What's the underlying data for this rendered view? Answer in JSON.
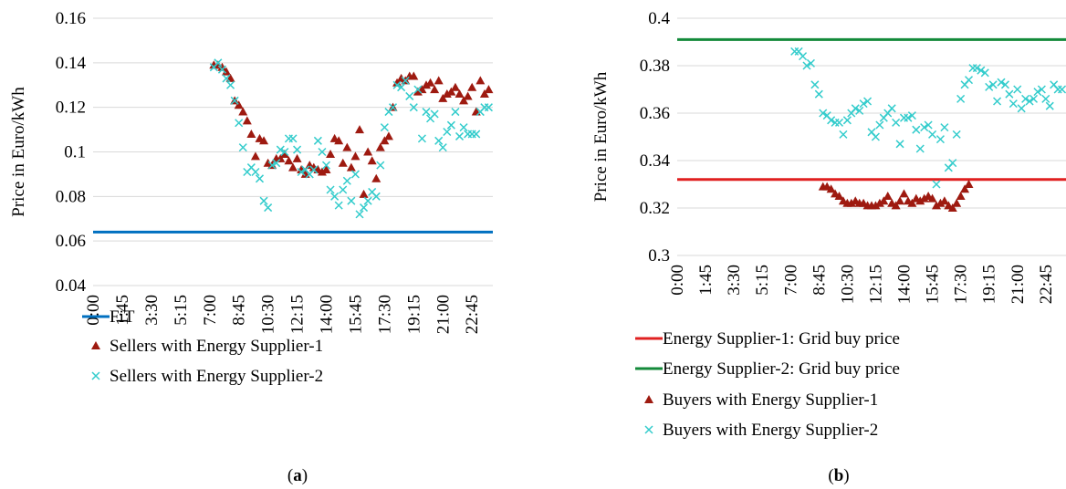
{
  "chart_data": [
    {
      "id": "a",
      "type": "scatter",
      "caption_letter": "a",
      "ylabel": "Price in Euro/kWh",
      "ylim": [
        0.04,
        0.16
      ],
      "yticks": [
        0.04,
        0.06,
        0.08,
        0.1,
        0.12,
        0.14,
        0.16
      ],
      "ytick_labels": [
        "0.04",
        "0.06",
        "0.08",
        "0.1",
        "0.12",
        "0.14",
        "0.16"
      ],
      "xlim": [
        0,
        24
      ],
      "xticks": [
        0,
        1.75,
        3.5,
        5.25,
        7,
        8.75,
        10.5,
        12.25,
        14,
        15.75,
        17.5,
        19.25,
        21,
        22.75
      ],
      "xtick_labels": [
        "0:00",
        "1:45",
        "3:30",
        "5:15",
        "7:00",
        "8:45",
        "10:30",
        "12:15",
        "14:00",
        "15:45",
        "17:30",
        "19:15",
        "21:00",
        "22:45"
      ],
      "grid": "horizontal",
      "legend_position": "bottom",
      "series": [
        {
          "name": "FiT",
          "kind": "line",
          "color": "#0070c0",
          "x": [
            0,
            24
          ],
          "y": [
            0.064,
            0.064
          ]
        },
        {
          "name": "Sellers with Energy Supplier-1",
          "kind": "triangle",
          "color": "#9e1a10",
          "x": [
            7.25,
            7.5,
            7.75,
            8.0,
            8.25,
            8.5,
            8.75,
            9.0,
            9.25,
            9.5,
            9.75,
            10.0,
            10.25,
            10.5,
            10.75,
            11.0,
            11.25,
            11.5,
            11.75,
            12.0,
            12.25,
            12.5,
            12.75,
            13.0,
            13.25,
            13.5,
            13.75,
            14.0,
            14.25,
            14.5,
            14.75,
            15.0,
            15.25,
            15.5,
            15.75,
            16.0,
            16.25,
            16.5,
            16.75,
            17.0,
            17.25,
            17.5,
            17.75,
            18.0,
            18.25,
            18.5,
            18.75,
            19.0,
            19.25,
            19.5,
            19.75,
            20.0,
            20.25,
            20.5,
            20.75,
            21.0,
            21.25,
            21.5,
            21.75,
            22.0,
            22.25,
            22.5,
            22.75,
            23.0,
            23.25,
            23.5,
            23.75
          ],
          "y": [
            0.139,
            0.139,
            0.138,
            0.136,
            0.133,
            0.123,
            0.121,
            0.118,
            0.114,
            0.108,
            0.098,
            0.106,
            0.105,
            0.095,
            0.094,
            0.097,
            0.097,
            0.099,
            0.096,
            0.093,
            0.097,
            0.092,
            0.09,
            0.094,
            0.093,
            0.092,
            0.091,
            0.092,
            0.099,
            0.106,
            0.105,
            0.095,
            0.102,
            0.093,
            0.098,
            0.11,
            0.081,
            0.1,
            0.096,
            0.088,
            0.102,
            0.105,
            0.107,
            0.12,
            0.131,
            0.133,
            0.132,
            0.134,
            0.134,
            0.127,
            0.128,
            0.13,
            0.131,
            0.128,
            0.132,
            0.124,
            0.126,
            0.127,
            0.129,
            0.126,
            0.123,
            0.125,
            0.129,
            0.118,
            0.132,
            0.126,
            0.128
          ]
        },
        {
          "name": "Sellers with Energy Supplier-2",
          "kind": "x",
          "color": "#33cccc",
          "x": [
            7.25,
            7.5,
            7.75,
            8.0,
            8.25,
            8.5,
            8.75,
            9.0,
            9.25,
            9.5,
            9.75,
            10.0,
            10.25,
            10.5,
            10.75,
            11.0,
            11.25,
            11.5,
            11.75,
            12.0,
            12.25,
            12.5,
            12.75,
            13.0,
            13.25,
            13.5,
            13.75,
            14.0,
            14.25,
            14.5,
            14.75,
            15.0,
            15.25,
            15.5,
            15.75,
            16.0,
            16.25,
            16.5,
            16.75,
            17.0,
            17.25,
            17.5,
            17.75,
            18.0,
            18.25,
            18.5,
            18.75,
            19.0,
            19.25,
            19.5,
            19.75,
            20.0,
            20.25,
            20.5,
            20.75,
            21.0,
            21.25,
            21.5,
            21.75,
            22.0,
            22.25,
            22.5,
            22.75,
            23.0,
            23.25,
            23.5,
            23.75
          ],
          "y": [
            0.138,
            0.14,
            0.137,
            0.133,
            0.13,
            0.123,
            0.113,
            0.102,
            0.091,
            0.093,
            0.091,
            0.088,
            0.078,
            0.075,
            0.094,
            0.095,
            0.101,
            0.1,
            0.106,
            0.106,
            0.101,
            0.091,
            0.092,
            0.09,
            0.092,
            0.105,
            0.1,
            0.094,
            0.083,
            0.08,
            0.076,
            0.083,
            0.087,
            0.078,
            0.09,
            0.072,
            0.075,
            0.078,
            0.082,
            0.08,
            0.094,
            0.111,
            0.118,
            0.12,
            0.13,
            0.129,
            0.132,
            0.125,
            0.12,
            0.128,
            0.106,
            0.118,
            0.115,
            0.117,
            0.105,
            0.102,
            0.109,
            0.112,
            0.118,
            0.107,
            0.111,
            0.108,
            0.108,
            0.108,
            0.118,
            0.12,
            0.12
          ]
        }
      ]
    },
    {
      "id": "b",
      "type": "scatter",
      "caption_letter": "b",
      "ylabel": "Price in Euro/kWh",
      "ylim": [
        0.3,
        0.4
      ],
      "yticks": [
        0.3,
        0.32,
        0.34,
        0.36,
        0.38,
        0.4
      ],
      "ytick_labels": [
        "0.3",
        "0.32",
        "0.34",
        "0.36",
        "0.38",
        "0.4"
      ],
      "xlim": [
        0,
        24
      ],
      "xticks": [
        0,
        1.75,
        3.5,
        5.25,
        7,
        8.75,
        10.5,
        12.25,
        14,
        15.75,
        17.5,
        19.25,
        21,
        22.75
      ],
      "xtick_labels": [
        "0:00",
        "1:45",
        "3:30",
        "5:15",
        "7:00",
        "8:45",
        "10:30",
        "12:15",
        "14:00",
        "15:45",
        "17:30",
        "19:15",
        "21:00",
        "22:45"
      ],
      "grid": "horizontal",
      "legend_position": "bottom",
      "series": [
        {
          "name": "Energy Supplier-1: Grid buy price",
          "kind": "line",
          "color": "#e02020",
          "x": [
            0,
            24
          ],
          "y": [
            0.332,
            0.332
          ]
        },
        {
          "name": "Energy Supplier-2: Grid buy price",
          "kind": "line",
          "color": "#138a3a",
          "x": [
            0,
            24
          ],
          "y": [
            0.391,
            0.391
          ]
        },
        {
          "name": "Buyers with Energy Supplier-1",
          "kind": "triangle",
          "color": "#9e1a10",
          "x": [
            9.0,
            9.25,
            9.5,
            9.75,
            10.0,
            10.25,
            10.5,
            10.75,
            11.0,
            11.25,
            11.5,
            11.75,
            12.0,
            12.25,
            12.5,
            12.75,
            13.0,
            13.25,
            13.5,
            13.75,
            14.0,
            14.25,
            14.5,
            14.75,
            15.0,
            15.25,
            15.5,
            15.75,
            16.0,
            16.25,
            16.5,
            16.75,
            17.0,
            17.25,
            17.5,
            17.75,
            18.0
          ],
          "y": [
            0.329,
            0.329,
            0.328,
            0.326,
            0.325,
            0.323,
            0.322,
            0.322,
            0.323,
            0.322,
            0.322,
            0.321,
            0.321,
            0.321,
            0.322,
            0.323,
            0.325,
            0.322,
            0.321,
            0.323,
            0.326,
            0.323,
            0.322,
            0.324,
            0.323,
            0.324,
            0.325,
            0.324,
            0.321,
            0.322,
            0.323,
            0.321,
            0.32,
            0.322,
            0.325,
            0.328,
            0.33
          ]
        },
        {
          "name": "Buyers with Energy Supplier-2",
          "kind": "x",
          "color": "#33cccc",
          "x": [
            7.25,
            7.5,
            7.75,
            8.0,
            8.25,
            8.5,
            8.75,
            9.0,
            9.25,
            9.5,
            9.75,
            10.0,
            10.25,
            10.5,
            10.75,
            11.0,
            11.25,
            11.5,
            11.75,
            12.0,
            12.25,
            12.5,
            12.75,
            13.0,
            13.25,
            13.5,
            13.75,
            14.0,
            14.25,
            14.5,
            14.75,
            15.0,
            15.25,
            15.5,
            15.75,
            16.0,
            16.25,
            16.5,
            16.75,
            17.0,
            17.25,
            17.5,
            17.75,
            18.0,
            18.25,
            18.5,
            18.75,
            19.0,
            19.25,
            19.5,
            19.75,
            20.0,
            20.25,
            20.5,
            20.75,
            21.0,
            21.25,
            21.5,
            21.75,
            22.0,
            22.25,
            22.5,
            22.75,
            23.0,
            23.25,
            23.5,
            23.75
          ],
          "y": [
            0.386,
            0.386,
            0.384,
            0.38,
            0.381,
            0.372,
            0.368,
            0.36,
            0.359,
            0.357,
            0.356,
            0.356,
            0.351,
            0.357,
            0.36,
            0.362,
            0.361,
            0.364,
            0.365,
            0.352,
            0.35,
            0.355,
            0.358,
            0.36,
            0.362,
            0.356,
            0.347,
            0.358,
            0.358,
            0.359,
            0.353,
            0.345,
            0.354,
            0.355,
            0.351,
            0.33,
            0.349,
            0.354,
            0.337,
            0.339,
            0.351,
            0.366,
            0.372,
            0.374,
            0.379,
            0.379,
            0.378,
            0.377,
            0.371,
            0.372,
            0.365,
            0.373,
            0.372,
            0.368,
            0.364,
            0.37,
            0.362,
            0.366,
            0.365,
            0.366,
            0.369,
            0.37,
            0.366,
            0.363,
            0.372,
            0.37,
            0.37
          ]
        }
      ]
    }
  ]
}
